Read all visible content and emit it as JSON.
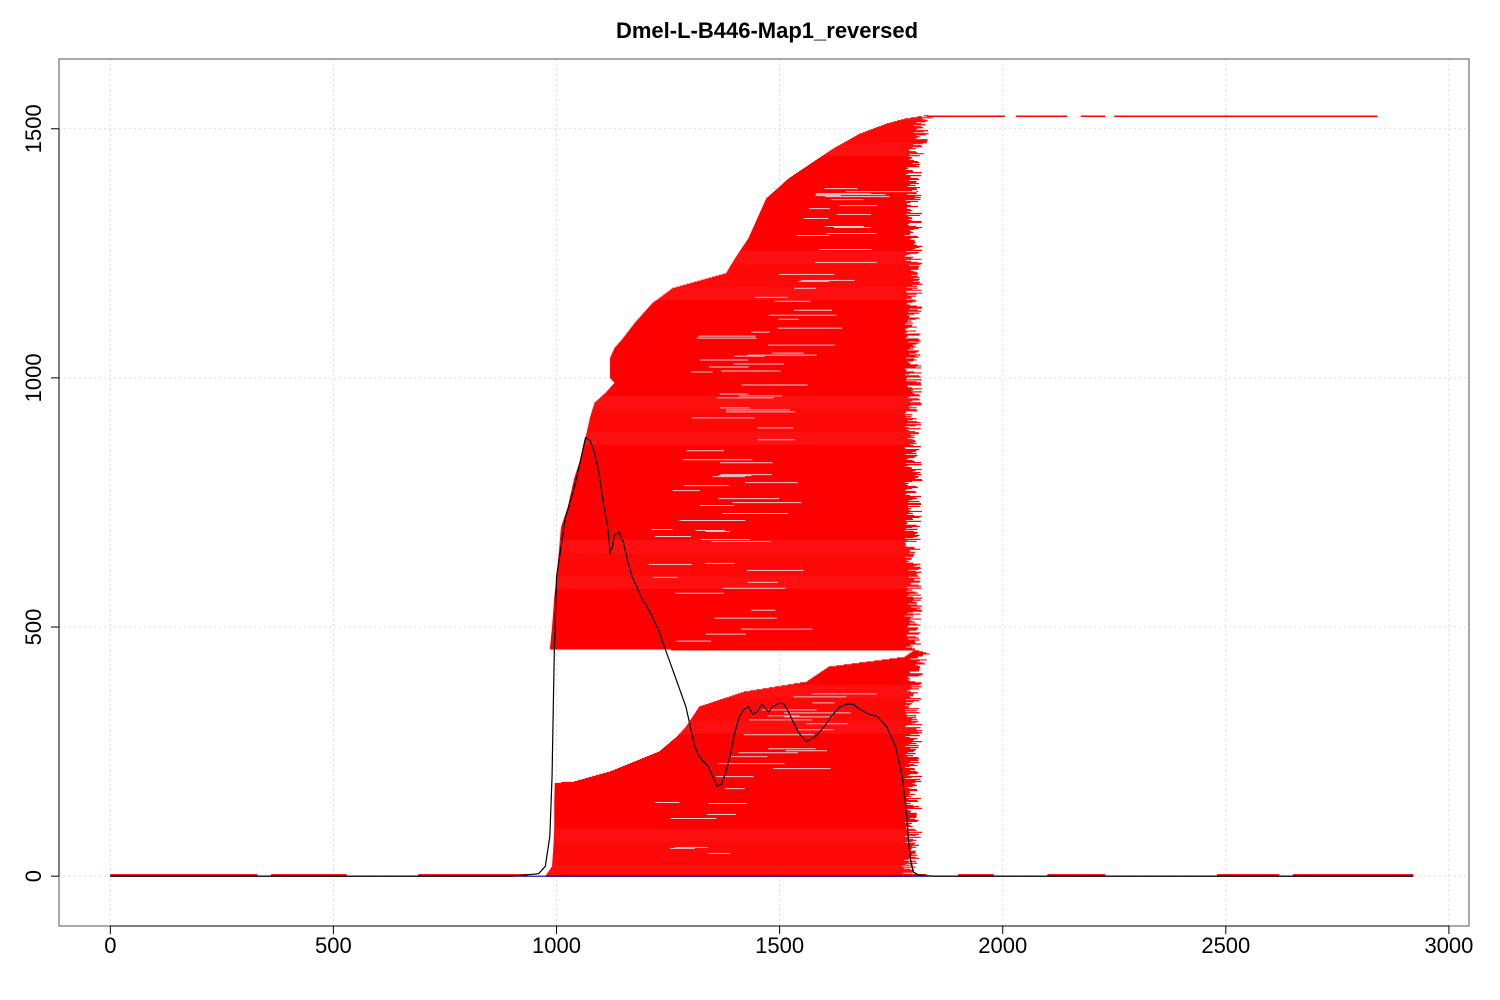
{
  "chart_data": {
    "type": "line",
    "title": "Dmel-L-B446-Map1_reversed",
    "xlabel": "",
    "ylabel": "",
    "xlim": [
      -115,
      3045
    ],
    "ylim": [
      -100,
      1640
    ],
    "x_ticks": [
      0,
      500,
      1000,
      1500,
      2000,
      2500,
      3000
    ],
    "y_ticks": [
      0,
      500,
      1000,
      1500
    ],
    "grid": true,
    "colors": {
      "read_fill": "#ff0000",
      "read_gap": "#d3d3d3",
      "coverage_line": "#000000",
      "baseline": "#00008b",
      "grid": "#d9d9d9"
    },
    "read_alignment_envelope": {
      "description_series": "alignment start (left edge) and end (right edge) per read index",
      "read_index": [
        0,
        20,
        60,
        100,
        150,
        185,
        187,
        190,
        210,
        250,
        280,
        300,
        340,
        370,
        390,
        420,
        440,
        452,
        455,
        500,
        560,
        600,
        650,
        700,
        740,
        760,
        800,
        840,
        880,
        920,
        950,
        970,
        990,
        1000,
        1040,
        1060,
        1075,
        1110,
        1150,
        1180,
        1200,
        1210,
        1240,
        1280,
        1320,
        1360,
        1400,
        1430,
        1460,
        1490,
        1505,
        1510,
        1520,
        1527
      ],
      "start": [
        975,
        990,
        993,
        995,
        995,
        996,
        996,
        1040,
        1120,
        1230,
        1270,
        1290,
        1320,
        1420,
        1560,
        1610,
        1780,
        1800,
        985,
        990,
        995,
        1000,
        1005,
        1010,
        1025,
        1030,
        1040,
        1055,
        1065,
        1075,
        1085,
        1110,
        1130,
        1120,
        1120,
        1130,
        1145,
        1175,
        1215,
        1260,
        1340,
        1380,
        1400,
        1430,
        1450,
        1470,
        1520,
        1570,
        1620,
        1680,
        1725,
        1740,
        1780,
        1830
      ],
      "end": [
        1790,
        1790,
        1800,
        1800,
        1800,
        1800,
        1800,
        1800,
        1800,
        1800,
        1800,
        1800,
        1800,
        1800,
        1800,
        1805,
        1815,
        1830,
        1800,
        1800,
        1800,
        1800,
        1800,
        1800,
        1800,
        1800,
        1800,
        1800,
        1800,
        1800,
        1800,
        1800,
        1800,
        1800,
        1800,
        1800,
        1800,
        1800,
        1800,
        1800,
        1800,
        1800,
        1800,
        1800,
        1800,
        1800,
        1800,
        1800,
        1810,
        1815,
        1815,
        1820,
        1825,
        1825
      ]
    },
    "long_tail_read": {
      "read_index": 1525,
      "segments": [
        [
          1830,
          2005
        ],
        [
          2030,
          2145
        ],
        [
          2175,
          2230
        ],
        [
          2250,
          2840
        ]
      ]
    },
    "coverage": {
      "name": "coverage",
      "x": [
        0,
        900,
        960,
        975,
        985,
        990,
        995,
        1000,
        1020,
        1040,
        1050,
        1060,
        1065,
        1075,
        1085,
        1095,
        1105,
        1115,
        1120,
        1125,
        1130,
        1140,
        1150,
        1160,
        1170,
        1180,
        1190,
        1200,
        1215,
        1230,
        1250,
        1270,
        1290,
        1300,
        1310,
        1320,
        1330,
        1340,
        1350,
        1360,
        1370,
        1380,
        1390,
        1400,
        1410,
        1420,
        1430,
        1440,
        1450,
        1460,
        1475,
        1485,
        1500,
        1510,
        1520,
        1530,
        1545,
        1560,
        1580,
        1600,
        1615,
        1625,
        1635,
        1650,
        1665,
        1680,
        1700,
        1720,
        1740,
        1760,
        1775,
        1785,
        1790,
        1795,
        1800,
        1810,
        1820,
        1830,
        1850,
        2000,
        2500,
        2920
      ],
      "y": [
        0,
        0,
        5,
        20,
        80,
        200,
        450,
        600,
        720,
        780,
        820,
        860,
        880,
        875,
        850,
        810,
        750,
        700,
        650,
        660,
        685,
        690,
        670,
        630,
        600,
        580,
        560,
        545,
        520,
        490,
        440,
        390,
        340,
        300,
        260,
        240,
        230,
        220,
        200,
        180,
        185,
        210,
        245,
        290,
        320,
        335,
        340,
        325,
        330,
        345,
        330,
        340,
        348,
        345,
        330,
        310,
        285,
        270,
        280,
        300,
        320,
        330,
        340,
        345,
        345,
        335,
        325,
        320,
        300,
        260,
        200,
        120,
        60,
        25,
        8,
        3,
        2,
        1,
        0,
        0,
        0,
        0
      ]
    },
    "baseline_reads": [
      [
        0,
        330
      ],
      [
        360,
        530
      ],
      [
        690,
        935
      ],
      [
        1000,
        1830
      ],
      [
        1900,
        1980
      ],
      [
        2100,
        2230
      ],
      [
        2480,
        2620
      ],
      [
        2650,
        2920
      ]
    ]
  }
}
